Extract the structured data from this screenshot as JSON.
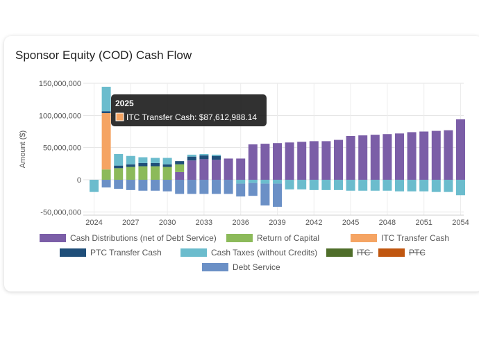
{
  "card": {
    "title": "Sponsor Equity (COD) Cash Flow"
  },
  "chart_data": {
    "type": "bar",
    "stacked": true,
    "title": "Sponsor Equity (COD) Cash Flow",
    "ylabel": "Amount ($)",
    "ylim": [
      -55000000,
      150000000
    ],
    "yticks": [
      -50000000,
      0,
      50000000,
      100000000,
      150000000
    ],
    "ytick_labels": [
      "-50,000,000",
      "0",
      "50,000,000",
      "100,000,000",
      "150,000,000"
    ],
    "categories": [
      "2024",
      "2025",
      "2026",
      "2027",
      "2028",
      "2029",
      "2030",
      "2031",
      "2032",
      "2033",
      "2034",
      "2035",
      "2036",
      "2037",
      "2038",
      "2039",
      "2040",
      "2041",
      "2042",
      "2043",
      "2044",
      "2045",
      "2046",
      "2047",
      "2048",
      "2049",
      "2050",
      "2051",
      "2052",
      "2053",
      "2054"
    ],
    "xtick_labels": [
      "2024",
      "2027",
      "2030",
      "2033",
      "2036",
      "2039",
      "2042",
      "2045",
      "2048",
      "2051",
      "2054"
    ],
    "grid": true,
    "legend_position": "bottom",
    "series": [
      {
        "name": "Cash Distributions (net of Debt Service)",
        "color": "#7b5ea7",
        "values": [
          0,
          0,
          0,
          0,
          0,
          0,
          0,
          12000000,
          30000000,
          32000000,
          31000000,
          33000000,
          33000000,
          55000000,
          56000000,
          57000000,
          58000000,
          59000000,
          60000000,
          60000000,
          62000000,
          68000000,
          69000000,
          70000000,
          71000000,
          72000000,
          74000000,
          75000000,
          76000000,
          77000000,
          94000000
        ]
      },
      {
        "name": "Return of Capital",
        "color": "#8cba5a",
        "values": [
          0,
          16000000,
          18000000,
          20000000,
          21000000,
          21000000,
          20000000,
          12000000,
          0,
          0,
          0,
          0,
          0,
          0,
          0,
          0,
          0,
          0,
          0,
          0,
          0,
          0,
          0,
          0,
          0,
          0,
          0,
          0,
          0,
          0,
          0
        ]
      },
      {
        "name": "ITC Transfer Cash",
        "color": "#f5a463",
        "values": [
          0,
          87612988.14,
          0,
          0,
          0,
          0,
          0,
          0,
          0,
          0,
          0,
          0,
          0,
          0,
          0,
          0,
          0,
          0,
          0,
          0,
          0,
          0,
          0,
          0,
          0,
          0,
          0,
          0,
          0,
          0,
          0
        ]
      },
      {
        "name": "PTC Transfer Cash",
        "color": "#1f4e79",
        "values": [
          0,
          3000000,
          4000000,
          4000000,
          5000000,
          5000000,
          4000000,
          5000000,
          6000000,
          6000000,
          6000000,
          0,
          0,
          0,
          0,
          0,
          0,
          0,
          0,
          0,
          0,
          0,
          0,
          0,
          0,
          0,
          0,
          0,
          0,
          0,
          0
        ]
      },
      {
        "name": "Cash Taxes (without Credits)",
        "color": "#6bbccd",
        "values": [
          -19000000,
          38000000,
          18000000,
          13000000,
          9000000,
          8000000,
          10000000,
          0,
          3000000,
          2000000,
          2000000,
          0,
          -6000000,
          -5000000,
          -6000000,
          -6000000,
          -15000000,
          -15000000,
          -16000000,
          -16000000,
          -16000000,
          -17000000,
          -17000000,
          -17000000,
          -17000000,
          -18000000,
          -18000000,
          -18000000,
          -19000000,
          -19000000,
          -24000000
        ]
      },
      {
        "name": "ITC",
        "color": "#4f6e2a",
        "hidden": true,
        "values": [
          0,
          0,
          0,
          0,
          0,
          0,
          0,
          0,
          0,
          0,
          0,
          0,
          0,
          0,
          0,
          0,
          0,
          0,
          0,
          0,
          0,
          0,
          0,
          0,
          0,
          0,
          0,
          0,
          0,
          0,
          0
        ]
      },
      {
        "name": "PTC",
        "color": "#c0560f",
        "hidden": true,
        "values": [
          0,
          0,
          0,
          0,
          0,
          0,
          0,
          0,
          0,
          0,
          0,
          0,
          0,
          0,
          0,
          0,
          0,
          0,
          0,
          0,
          0,
          0,
          0,
          0,
          0,
          0,
          0,
          0,
          0,
          0,
          0
        ]
      },
      {
        "name": "Debt Service",
        "color": "#6b90c6",
        "values": [
          0,
          -12000000,
          -14000000,
          -16000000,
          -17000000,
          -17000000,
          -18000000,
          -22000000,
          -22000000,
          -22000000,
          -22000000,
          -22000000,
          -20000000,
          -20000000,
          -34000000,
          -36000000,
          0,
          0,
          0,
          0,
          0,
          0,
          0,
          0,
          0,
          0,
          0,
          0,
          0,
          0,
          0
        ]
      }
    ],
    "tooltip": {
      "title": "2025",
      "label": "ITC Transfer Cash: $87,612,988.14",
      "color": "#f5a463"
    }
  }
}
